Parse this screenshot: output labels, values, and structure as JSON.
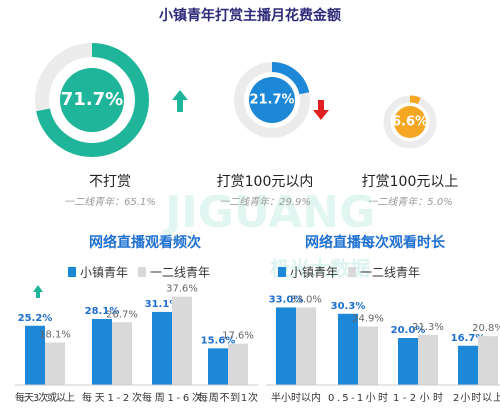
{
  "title": "小镇青年打赏主播月花费金额",
  "watermark": [
    "JIGUANG",
    "极光大数据"
  ],
  "chart_data": [
    {
      "type": "donut",
      "categories": [
        "不打赏",
        "打赏100元以内",
        "打赏100元以上"
      ],
      "values": [
        71.7,
        21.7,
        6.6
      ],
      "value_labels": [
        "71.7%",
        "21.7%",
        "6.6%"
      ],
      "notes": [
        "一二线青年：65.1%",
        "一二线青年：29.9%",
        "一二线青年：5.0%"
      ],
      "colors": [
        "#1fb59a",
        "#1e88d8",
        "#f5a623"
      ]
    },
    {
      "type": "bar",
      "title": "网络直播观看频次",
      "categories": [
        "每天3次或以上",
        "每天1-2次",
        "每周1-6次",
        "每周不到1次"
      ],
      "series": [
        {
          "name": "小镇青年",
          "color": "#1e88d8",
          "values": [
            25.2,
            28.1,
            31.1,
            15.6
          ],
          "value_labels": [
            "25.2%",
            "28.1%",
            "31.1%",
            "15.6%"
          ]
        },
        {
          "name": "一二线青年",
          "color": "#d9d9d9",
          "values": [
            18.1,
            26.7,
            37.6,
            17.6
          ],
          "value_labels": [
            "18.1%",
            "26.7%",
            "37.6%",
            "17.6%"
          ]
        }
      ]
    },
    {
      "type": "bar",
      "title": "网络直播每次观看时长",
      "categories": [
        "半小时以内",
        "0.5-1小时",
        "1-2小时",
        "2小时以上"
      ],
      "series": [
        {
          "name": "小镇青年",
          "color": "#1e88d8",
          "values": [
            33.0,
            30.3,
            20.0,
            16.7
          ],
          "value_labels": [
            "33.0%",
            "30.3%",
            "20.0%",
            "16.7%"
          ]
        },
        {
          "name": "一二线青年",
          "color": "#d9d9d9",
          "values": [
            33.0,
            24.9,
            21.3,
            20.8
          ],
          "value_labels": [
            "33.0%",
            "24.9%",
            "21.3%",
            "20.8%"
          ]
        }
      ]
    }
  ]
}
